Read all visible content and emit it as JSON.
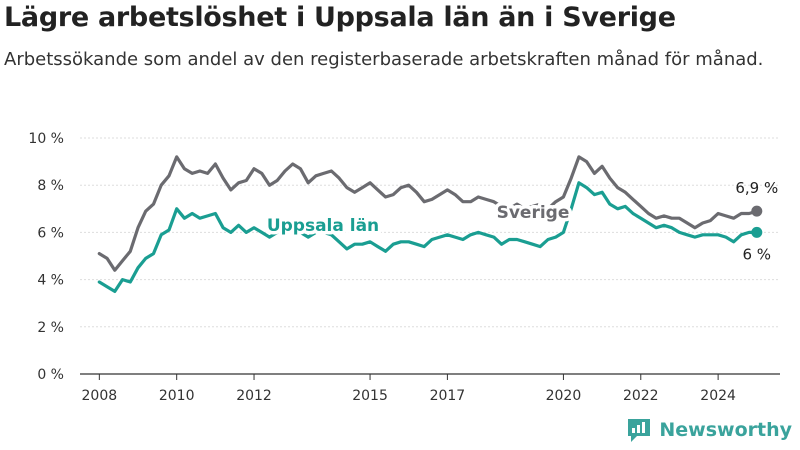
{
  "header": {
    "title": "Lägre arbetslöshet i Uppsala län än i Sverige",
    "subtitle": "Arbetssökande som andel av den registerbaserade arbetskraften månad för månad."
  },
  "brand": {
    "name": "Newsworthy",
    "icon": "newsworthy-logo-icon",
    "color": "#3aa39c"
  },
  "chart_data": {
    "type": "line",
    "title": "Lägre arbetslöshet i Uppsala län än i Sverige",
    "subtitle": "Arbetssökande som andel av den registerbaserade arbetskraften månad för månad.",
    "xlabel": "",
    "ylabel": "",
    "ylim": [
      0,
      10
    ],
    "xlim": [
      2007.5,
      2025.6
    ],
    "y_ticks": [
      0,
      2,
      4,
      6,
      8,
      10
    ],
    "y_tick_labels": [
      "0 %",
      "2 %",
      "4 %",
      "6 %",
      "8 %",
      "10 %"
    ],
    "x_ticks": [
      2008,
      2010,
      2012,
      2015,
      2017,
      2020,
      2022,
      2024
    ],
    "x_tick_labels": [
      "2008",
      "2010",
      "2012",
      "2015",
      "2017",
      "2020",
      "2022",
      "2024"
    ],
    "grid": true,
    "legend": "inline labels",
    "series": [
      {
        "name": "Sverige",
        "color": "#6b6b70",
        "end_label": "6,9 %",
        "x": [
          2008.0,
          2008.2,
          2008.4,
          2008.6,
          2008.8,
          2009.0,
          2009.2,
          2009.4,
          2009.6,
          2009.8,
          2010.0,
          2010.2,
          2010.4,
          2010.6,
          2010.8,
          2011.0,
          2011.2,
          2011.4,
          2011.6,
          2011.8,
          2012.0,
          2012.2,
          2012.4,
          2012.6,
          2012.8,
          2013.0,
          2013.2,
          2013.4,
          2013.6,
          2013.8,
          2014.0,
          2014.2,
          2014.4,
          2014.6,
          2014.8,
          2015.0,
          2015.2,
          2015.4,
          2015.6,
          2015.8,
          2016.0,
          2016.2,
          2016.4,
          2016.6,
          2016.8,
          2017.0,
          2017.2,
          2017.4,
          2017.6,
          2017.8,
          2018.0,
          2018.2,
          2018.4,
          2018.6,
          2018.8,
          2019.0,
          2019.2,
          2019.4,
          2019.6,
          2019.8,
          2020.0,
          2020.2,
          2020.4,
          2020.6,
          2020.8,
          2021.0,
          2021.2,
          2021.4,
          2021.6,
          2021.8,
          2022.0,
          2022.2,
          2022.4,
          2022.6,
          2022.8,
          2023.0,
          2023.2,
          2023.4,
          2023.6,
          2023.8,
          2024.0,
          2024.2,
          2024.4,
          2024.6,
          2024.8,
          2025.0
        ],
        "values": [
          5.1,
          4.9,
          4.4,
          4.8,
          5.2,
          6.2,
          6.9,
          7.2,
          8.0,
          8.4,
          9.2,
          8.7,
          8.5,
          8.6,
          8.5,
          8.9,
          8.3,
          7.8,
          8.1,
          8.2,
          8.7,
          8.5,
          8.0,
          8.2,
          8.6,
          8.9,
          8.7,
          8.1,
          8.4,
          8.5,
          8.6,
          8.3,
          7.9,
          7.7,
          7.9,
          8.1,
          7.8,
          7.5,
          7.6,
          7.9,
          8.0,
          7.7,
          7.3,
          7.4,
          7.6,
          7.8,
          7.6,
          7.3,
          7.3,
          7.5,
          7.4,
          7.3,
          7.1,
          7.0,
          7.2,
          7.0,
          7.1,
          7.2,
          7.0,
          7.3,
          7.5,
          8.3,
          9.2,
          9.0,
          8.5,
          8.8,
          8.3,
          7.9,
          7.7,
          7.4,
          7.1,
          6.8,
          6.6,
          6.7,
          6.6,
          6.6,
          6.4,
          6.2,
          6.4,
          6.5,
          6.8,
          6.7,
          6.6,
          6.8,
          6.8,
          6.9
        ]
      },
      {
        "name": "Uppsala län",
        "color": "#1a9e92",
        "end_label": "6 %",
        "x": [
          2008.0,
          2008.2,
          2008.4,
          2008.6,
          2008.8,
          2009.0,
          2009.2,
          2009.4,
          2009.6,
          2009.8,
          2010.0,
          2010.2,
          2010.4,
          2010.6,
          2010.8,
          2011.0,
          2011.2,
          2011.4,
          2011.6,
          2011.8,
          2012.0,
          2012.2,
          2012.4,
          2012.6,
          2012.8,
          2013.0,
          2013.2,
          2013.4,
          2013.6,
          2013.8,
          2014.0,
          2014.2,
          2014.4,
          2014.6,
          2014.8,
          2015.0,
          2015.2,
          2015.4,
          2015.6,
          2015.8,
          2016.0,
          2016.2,
          2016.4,
          2016.6,
          2016.8,
          2017.0,
          2017.2,
          2017.4,
          2017.6,
          2017.8,
          2018.0,
          2018.2,
          2018.4,
          2018.6,
          2018.8,
          2019.0,
          2019.2,
          2019.4,
          2019.6,
          2019.8,
          2020.0,
          2020.2,
          2020.4,
          2020.6,
          2020.8,
          2021.0,
          2021.2,
          2021.4,
          2021.6,
          2021.8,
          2022.0,
          2022.2,
          2022.4,
          2022.6,
          2022.8,
          2023.0,
          2023.2,
          2023.4,
          2023.6,
          2023.8,
          2024.0,
          2024.2,
          2024.4,
          2024.6,
          2024.8,
          2025.0
        ],
        "values": [
          3.9,
          3.7,
          3.5,
          4.0,
          3.9,
          4.5,
          4.9,
          5.1,
          5.9,
          6.1,
          7.0,
          6.6,
          6.8,
          6.6,
          6.7,
          6.8,
          6.2,
          6.0,
          6.3,
          6.0,
          6.2,
          6.0,
          5.8,
          6.0,
          6.1,
          6.2,
          6.0,
          5.8,
          6.0,
          6.0,
          5.9,
          5.6,
          5.3,
          5.5,
          5.5,
          5.6,
          5.4,
          5.2,
          5.5,
          5.6,
          5.6,
          5.5,
          5.4,
          5.7,
          5.8,
          5.9,
          5.8,
          5.7,
          5.9,
          6.0,
          5.9,
          5.8,
          5.5,
          5.7,
          5.7,
          5.6,
          5.5,
          5.4,
          5.7,
          5.8,
          6.0,
          7.0,
          8.1,
          7.9,
          7.6,
          7.7,
          7.2,
          7.0,
          7.1,
          6.8,
          6.6,
          6.4,
          6.2,
          6.3,
          6.2,
          6.0,
          5.9,
          5.8,
          5.9,
          5.9,
          5.9,
          5.8,
          5.6,
          5.9,
          6.0,
          6.0
        ]
      }
    ]
  }
}
